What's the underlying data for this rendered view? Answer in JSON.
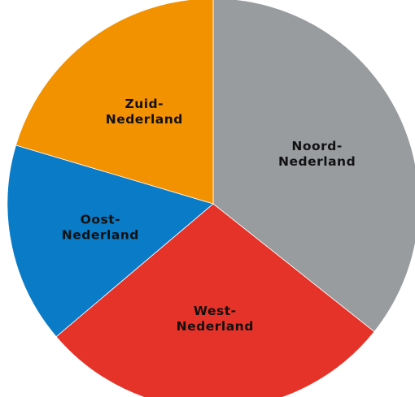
{
  "chart_data": {
    "type": "pie",
    "title": "",
    "start_angle_deg": 0,
    "direction": "clockwise",
    "slices": [
      {
        "label": [
          "Noord-",
          "Nederland"
        ],
        "value": 35.7,
        "color": "#999c9f"
      },
      {
        "label": [
          "West-",
          "Nederland"
        ],
        "value": 28.1,
        "color": "#e5332a"
      },
      {
        "label": [
          "Oost-",
          "Nederland"
        ],
        "value": 15.8,
        "color": "#0a7bc7"
      },
      {
        "label": [
          "Zuid-",
          "Nederland"
        ],
        "value": 20.4,
        "color": "#f39200"
      }
    ]
  }
}
